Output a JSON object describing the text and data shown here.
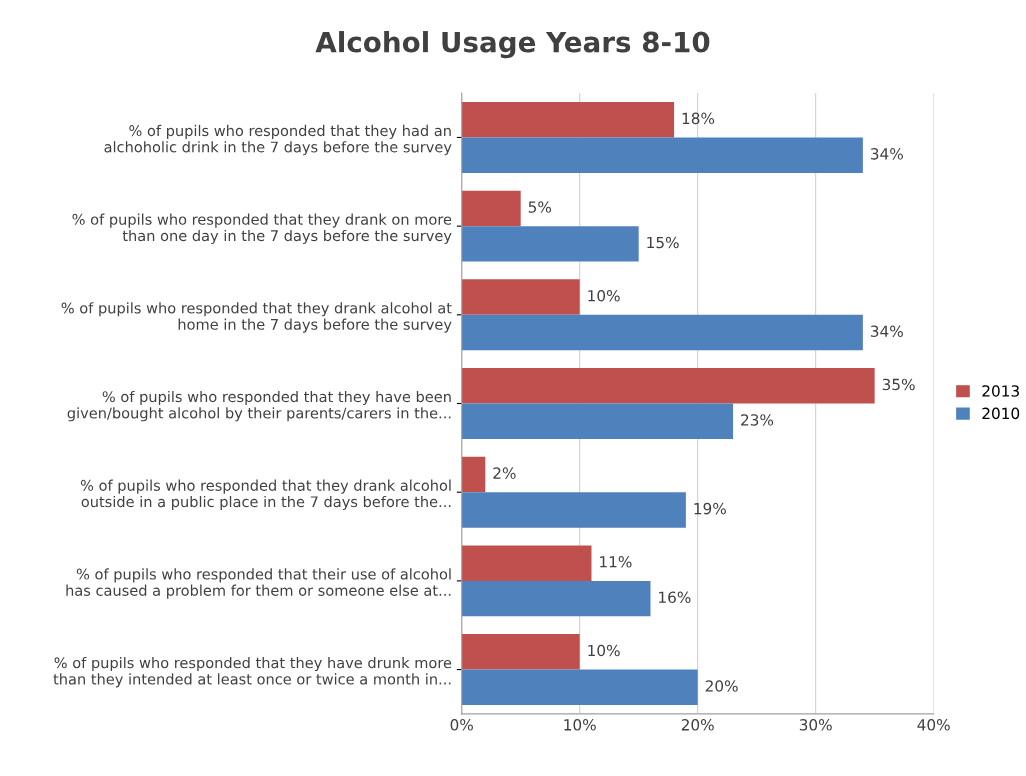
{
  "chart_data": {
    "type": "bar",
    "orientation": "horizontal",
    "title": "Alcohol Usage Years 8-10",
    "categories": [
      "% of pupils who responded that they had an\nalchoholic drink in the 7 days before the survey",
      "% of pupils who responded that they drank on more\nthan one day in the 7 days before the survey",
      "% of pupils who responded that they drank alcohol at\nhome in the 7 days before the survey",
      "% of pupils who responded that they have been\ngiven/bought alcohol by their parents/carers in the...",
      "% of pupils who responded that they drank alcohol\noutside in a public place in the 7 days before the...",
      "% of pupils who responded that their use of alcohol\nhas caused a problem for them or someone else at...",
      "% of pupils who responded that they have drunk more\nthan they intended at least once or twice a month in..."
    ],
    "series": [
      {
        "name": "2013",
        "color": "#c0504d",
        "values": [
          18,
          5,
          10,
          35,
          2,
          11,
          10
        ],
        "value_labels": [
          "18%",
          "5%",
          "10%",
          "35%",
          "2%",
          "11%",
          "10%"
        ]
      },
      {
        "name": "2010",
        "color": "#4f81bd",
        "values": [
          34,
          15,
          34,
          23,
          19,
          16,
          20
        ],
        "value_labels": [
          "34%",
          "15%",
          "34%",
          "23%",
          "19%",
          "16%",
          "20%"
        ]
      }
    ],
    "xlim": [
      0,
      40
    ],
    "xticks": [
      {
        "value": 0,
        "label": "0%"
      },
      {
        "value": 10,
        "label": "10%"
      },
      {
        "value": 20,
        "label": "20%"
      },
      {
        "value": 30,
        "label": "30%"
      },
      {
        "value": 40,
        "label": "40%"
      }
    ],
    "grid": "x",
    "legend": "right"
  }
}
